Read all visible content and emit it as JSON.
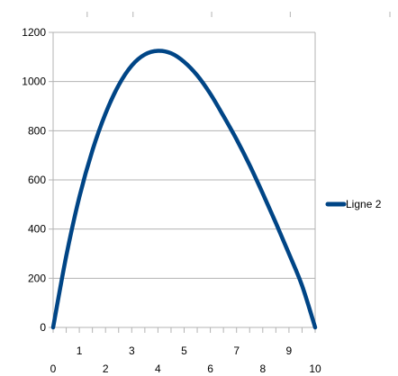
{
  "chart_data": {
    "type": "line",
    "title": "",
    "xlabel": "",
    "ylabel": "",
    "x": [
      0,
      0.5,
      1,
      1.5,
      2,
      2.5,
      3,
      3.5,
      4,
      4.5,
      5,
      5.5,
      6,
      6.5,
      7,
      7.5,
      8,
      8.5,
      9,
      9.5,
      10
    ],
    "series": [
      {
        "name": "Ligne 2",
        "values": [
          0,
          290,
          530,
          720,
          870,
          985,
          1065,
          1110,
          1125,
          1115,
          1080,
          1025,
          950,
          860,
          765,
          660,
          545,
          425,
          300,
          170,
          0
        ]
      }
    ],
    "ylim": [
      0,
      1200
    ],
    "xlim": [
      0,
      10
    ],
    "yticks": [
      "0",
      "200",
      "400",
      "600",
      "800",
      "1000",
      "1200"
    ],
    "xticks_top": [
      "1",
      "3",
      "5",
      "7",
      "9"
    ],
    "xticks_bottom": [
      "0",
      "2",
      "4",
      "6",
      "8",
      "10"
    ],
    "grid": true,
    "legend": "right",
    "colors": {
      "series": "#004586",
      "grid": "#b3b3b3",
      "axis": "#b3b3b3"
    }
  }
}
